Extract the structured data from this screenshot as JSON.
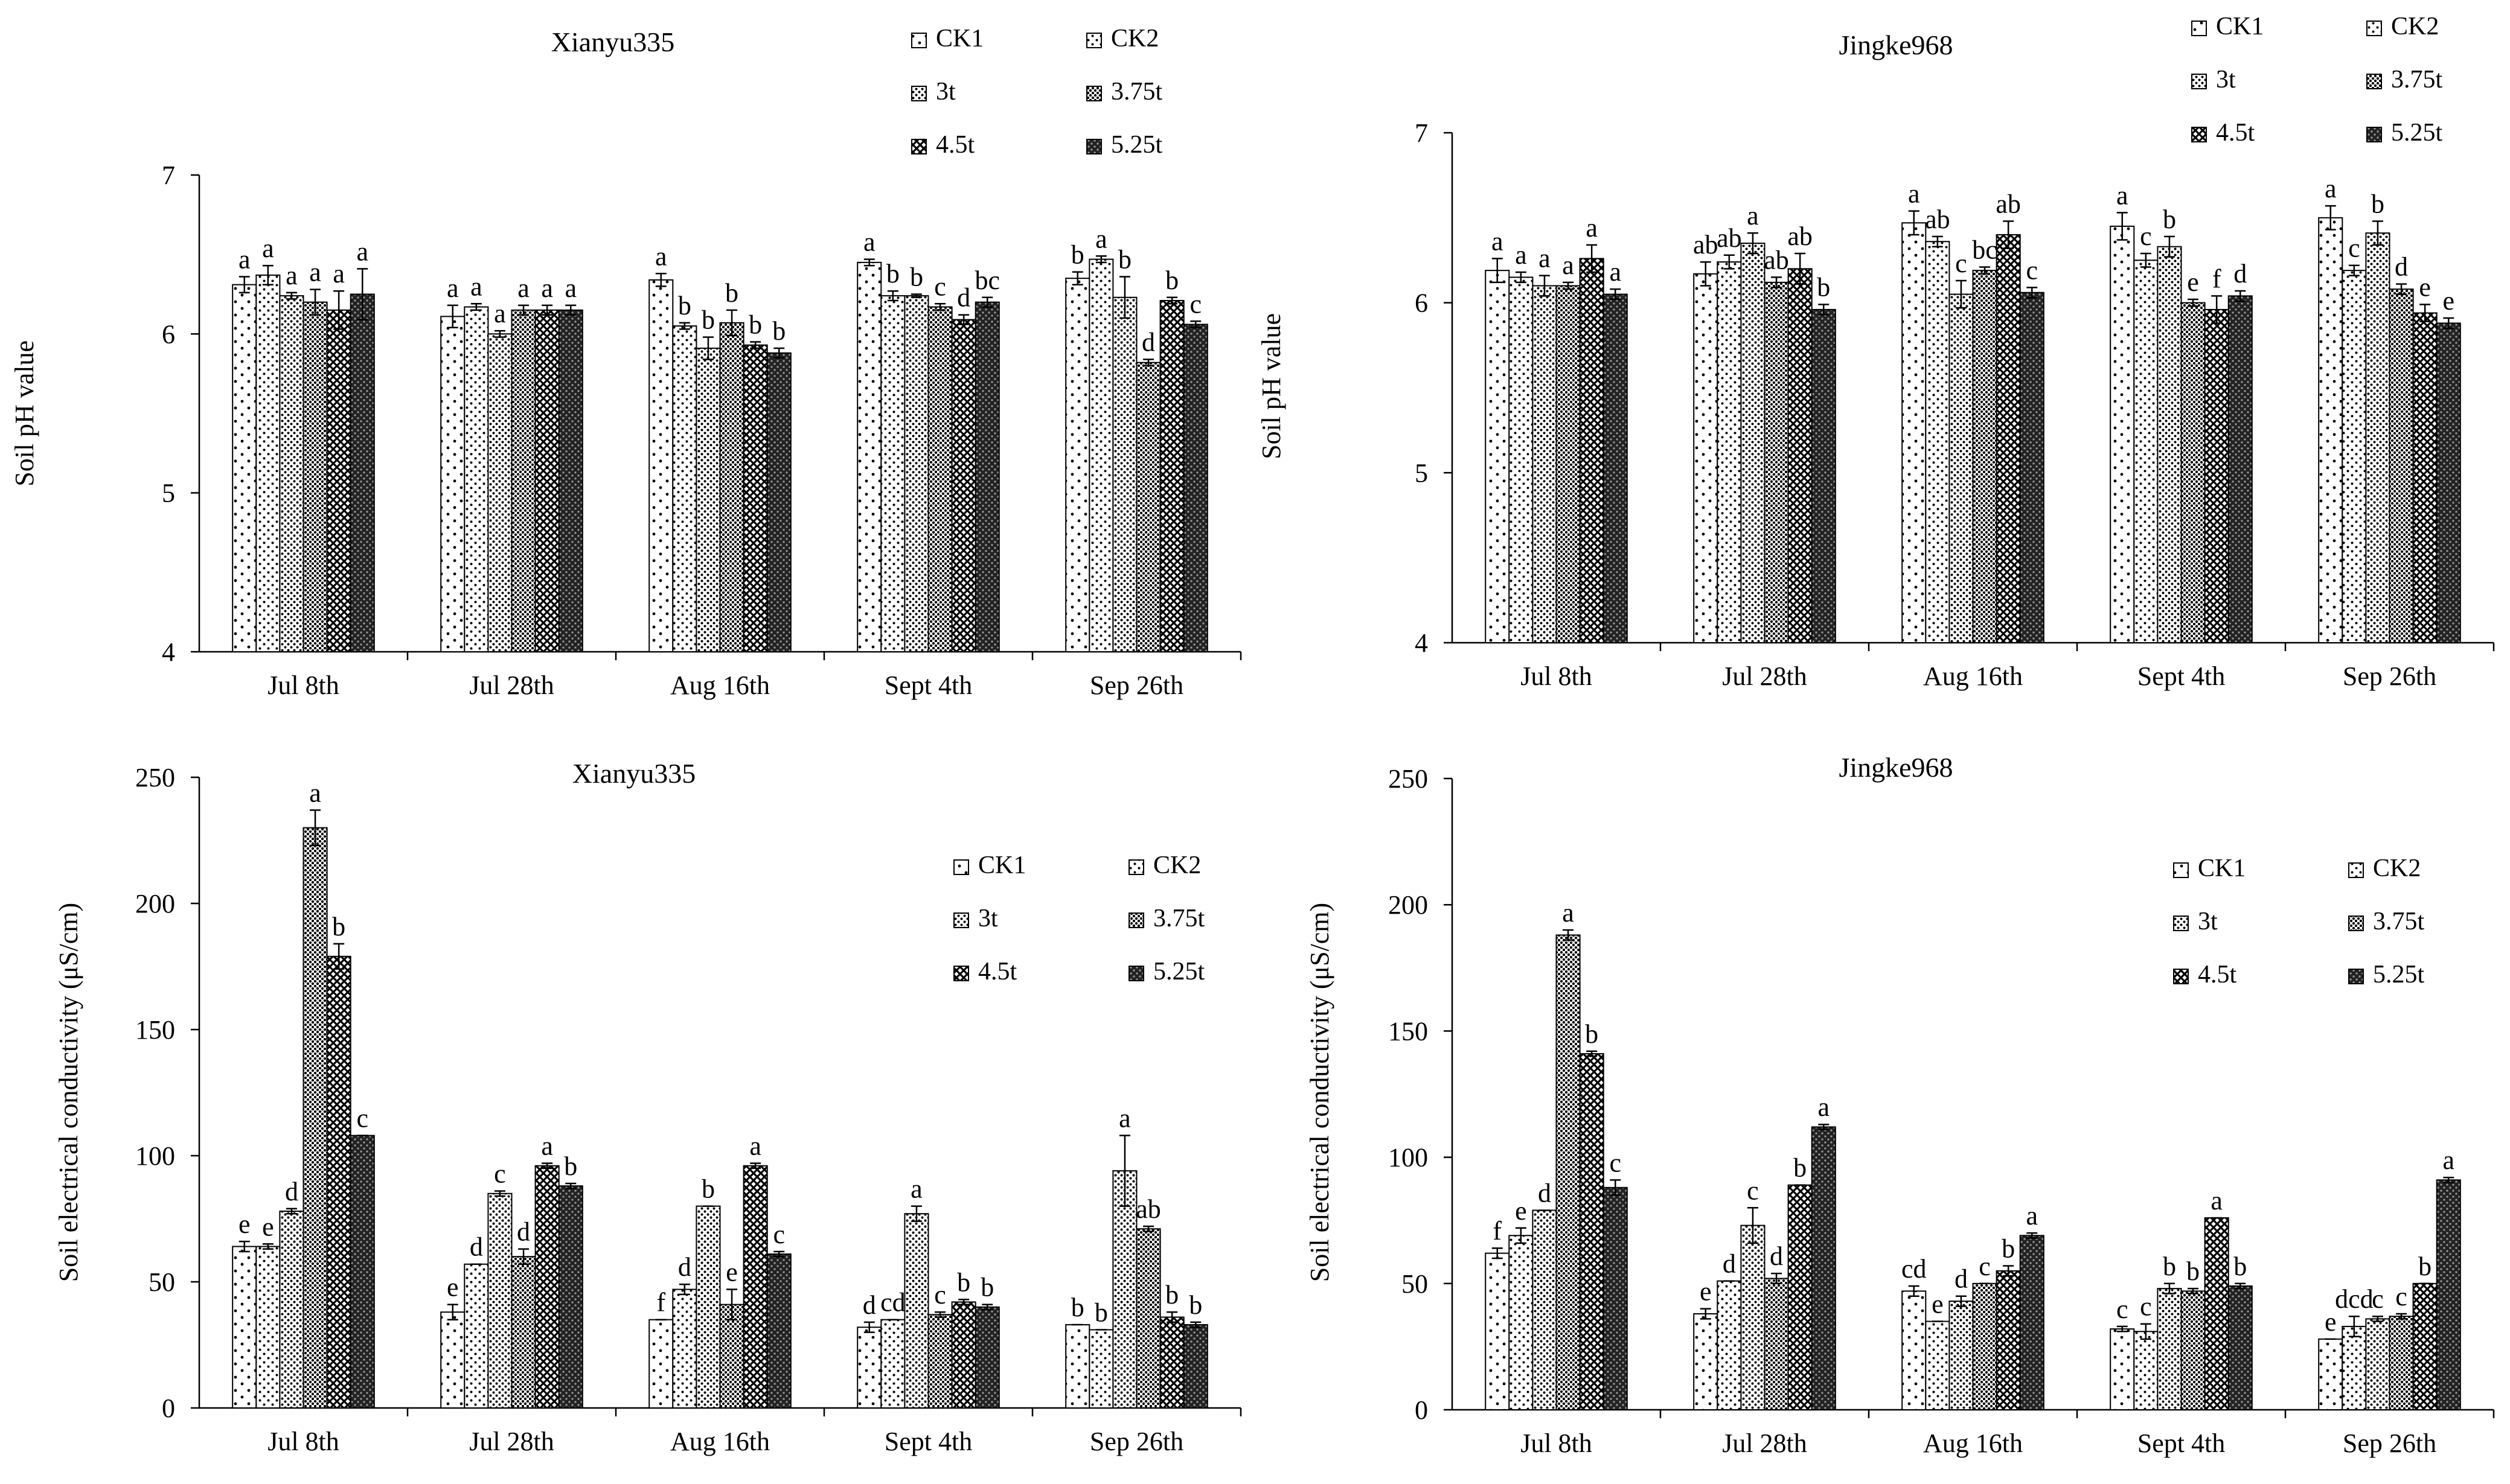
{
  "chart_data": [
    {
      "id": "ph_xianyu",
      "type": "bar",
      "title": "Xianyu335",
      "xlabel": "",
      "ylabel": "Soil pH value",
      "ylim": [
        4,
        7
      ],
      "yticks": [
        4,
        5,
        6,
        7
      ],
      "grid": false,
      "legend_position": "top-right",
      "categories": [
        "Jul 8th",
        "Jul 28th",
        "Aug 16th",
        "Sept 4th",
        "Sep 26th"
      ],
      "series": [
        {
          "name": "CK1",
          "pattern": "dots-sparse",
          "values": [
            6.31,
            6.11,
            6.34,
            6.45,
            6.35
          ],
          "errors": [
            0.05,
            0.07,
            0.04,
            0.02,
            0.04
          ],
          "letters": [
            "a",
            "a",
            "a",
            "a",
            "b"
          ]
        },
        {
          "name": "CK2",
          "pattern": "dots-light",
          "values": [
            6.37,
            6.17,
            6.05,
            6.24,
            6.47
          ],
          "errors": [
            0.06,
            0.02,
            0.02,
            0.03,
            0.02
          ],
          "letters": [
            "a",
            "a",
            "b",
            "b",
            "a"
          ]
        },
        {
          "name": "3t",
          "pattern": "dots-medium",
          "values": [
            6.24,
            6.0,
            5.91,
            6.24,
            6.23
          ],
          "errors": [
            0.02,
            0.02,
            0.07,
            0.01,
            0.13
          ],
          "letters": [
            "a",
            "a",
            "b",
            "b",
            "b"
          ]
        },
        {
          "name": "3.75t",
          "pattern": "dots-dense",
          "values": [
            6.2,
            6.15,
            6.07,
            6.17,
            5.82
          ],
          "errors": [
            0.08,
            0.03,
            0.08,
            0.02,
            0.02
          ],
          "letters": [
            "a",
            "a",
            "b",
            "c",
            "d"
          ]
        },
        {
          "name": "4.5t",
          "pattern": "crosshatch",
          "values": [
            6.15,
            6.15,
            5.93,
            6.09,
            6.21
          ],
          "errors": [
            0.12,
            0.03,
            0.02,
            0.03,
            0.02
          ],
          "letters": [
            "a",
            "a",
            "b",
            "d",
            "b"
          ]
        },
        {
          "name": "5.25t",
          "pattern": "dark-weave",
          "values": [
            6.25,
            6.15,
            5.88,
            6.2,
            6.06
          ],
          "errors": [
            0.16,
            0.03,
            0.03,
            0.03,
            0.02
          ],
          "letters": [
            "a",
            "a",
            "b",
            "bc",
            "c"
          ]
        }
      ]
    },
    {
      "id": "ph_jingke",
      "type": "bar",
      "title": "Jingke968",
      "xlabel": "",
      "ylabel": "Soil pH value",
      "ylim": [
        4,
        7
      ],
      "yticks": [
        4,
        5,
        6,
        7
      ],
      "grid": false,
      "legend_position": "top-right",
      "categories": [
        "Jul 8th",
        "Jul 28th",
        "Aug 16th",
        "Sept 4th",
        "Sep 26th"
      ],
      "series": [
        {
          "name": "CK1",
          "pattern": "dots-sparse",
          "values": [
            6.19,
            6.17,
            6.47,
            6.45,
            6.5
          ],
          "errors": [
            0.07,
            0.07,
            0.07,
            0.08,
            0.07
          ],
          "letters": [
            "a",
            "ab",
            "a",
            "a",
            "a"
          ]
        },
        {
          "name": "CK2",
          "pattern": "dots-light",
          "values": [
            6.15,
            6.24,
            6.36,
            6.25,
            6.19
          ],
          "errors": [
            0.03,
            0.04,
            0.03,
            0.04,
            0.03
          ],
          "letters": [
            "a",
            "ab",
            "ab",
            "c",
            "c"
          ]
        },
        {
          "name": "3t",
          "pattern": "dots-medium",
          "values": [
            6.1,
            6.35,
            6.05,
            6.33,
            6.41
          ],
          "errors": [
            0.06,
            0.06,
            0.08,
            0.06,
            0.07
          ],
          "letters": [
            "a",
            "a",
            "c",
            "b",
            "b"
          ]
        },
        {
          "name": "3.75t",
          "pattern": "dots-dense",
          "values": [
            6.1,
            6.12,
            6.19,
            6.0,
            6.08
          ],
          "errors": [
            0.02,
            0.03,
            0.02,
            0.02,
            0.03
          ],
          "letters": [
            "a",
            "ab",
            "bc",
            "e",
            "d"
          ]
        },
        {
          "name": "4.5t",
          "pattern": "crosshatch",
          "values": [
            6.26,
            6.2,
            6.4,
            5.96,
            5.94
          ],
          "errors": [
            0.08,
            0.09,
            0.08,
            0.08,
            0.05
          ],
          "letters": [
            "a",
            "ab",
            "ab",
            "f",
            "e"
          ]
        },
        {
          "name": "5.25t",
          "pattern": "dark-weave",
          "values": [
            6.05,
            5.96,
            6.06,
            6.04,
            5.88
          ],
          "errors": [
            0.03,
            0.03,
            0.03,
            0.03,
            0.03
          ],
          "letters": [
            "a",
            "b",
            "c",
            "d",
            "e"
          ]
        }
      ]
    },
    {
      "id": "ec_xianyu",
      "type": "bar",
      "title": "Xianyu335",
      "xlabel": "",
      "ylabel": "Soil electrical conductivity (μS/cm)",
      "ylim": [
        0,
        250
      ],
      "yticks": [
        0,
        50,
        100,
        150,
        200,
        250
      ],
      "grid": false,
      "legend_position": "top-right",
      "categories": [
        "Jul 8th",
        "Jul 28th",
        "Aug 16th",
        "Sept 4th",
        "Sep 26th"
      ],
      "series": [
        {
          "name": "CK1",
          "pattern": "dots-sparse",
          "values": [
            64,
            38,
            35,
            32,
            33
          ],
          "errors": [
            2,
            3,
            0,
            2,
            0
          ],
          "letters": [
            "e",
            "e",
            "f",
            "d",
            "b"
          ]
        },
        {
          "name": "CK2",
          "pattern": "dots-light",
          "values": [
            64,
            57,
            47,
            35,
            31
          ],
          "errors": [
            1,
            0,
            2,
            0,
            0
          ],
          "letters": [
            "e",
            "d",
            "d",
            "cd",
            "b"
          ]
        },
        {
          "name": "3t",
          "pattern": "dots-medium",
          "values": [
            78,
            85,
            80,
            77,
            94
          ],
          "errors": [
            1,
            1,
            0,
            3,
            14
          ],
          "letters": [
            "d",
            "c",
            "b",
            "a",
            "a"
          ]
        },
        {
          "name": "3.75t",
          "pattern": "dots-dense",
          "values": [
            230,
            60,
            41,
            37,
            71
          ],
          "errors": [
            7,
            3,
            6,
            1,
            1
          ],
          "letters": [
            "a",
            "d",
            "e",
            "c",
            "ab"
          ]
        },
        {
          "name": "4.5t",
          "pattern": "crosshatch",
          "values": [
            179,
            96,
            96,
            42,
            36
          ],
          "errors": [
            5,
            1,
            1,
            1,
            2
          ],
          "letters": [
            "b",
            "a",
            "a",
            "b",
            "b"
          ]
        },
        {
          "name": "5.25t",
          "pattern": "dark-weave",
          "values": [
            108,
            88,
            61,
            40,
            33
          ],
          "errors": [
            0,
            1,
            1,
            1,
            1
          ],
          "letters": [
            "c",
            "b",
            "c",
            "b",
            "b"
          ]
        }
      ]
    },
    {
      "id": "ec_jingke",
      "type": "bar",
      "title": "Jingke968",
      "xlabel": "",
      "ylabel": "Soil electrical conductivity (μS/cm)",
      "ylim": [
        0,
        250
      ],
      "yticks": [
        0,
        50,
        100,
        150,
        200,
        250
      ],
      "grid": false,
      "legend_position": "top-right",
      "categories": [
        "Jul 8th",
        "Jul 28th",
        "Aug 16th",
        "Sept 4th",
        "Sep 26th"
      ],
      "series": [
        {
          "name": "CK1",
          "pattern": "dots-sparse",
          "values": [
            62,
            38,
            47,
            32,
            28
          ],
          "errors": [
            2,
            2,
            2,
            1,
            0
          ],
          "letters": [
            "f",
            "e",
            "cd",
            "c",
            "e"
          ]
        },
        {
          "name": "CK2",
          "pattern": "dots-light",
          "values": [
            69,
            51,
            35,
            31,
            33
          ],
          "errors": [
            3,
            0,
            0,
            3,
            4
          ],
          "letters": [
            "e",
            "d",
            "e",
            "c",
            "dcd"
          ]
        },
        {
          "name": "3t",
          "pattern": "dots-medium",
          "values": [
            79,
            73,
            43,
            48,
            36
          ],
          "errors": [
            0,
            7,
            2,
            2,
            1
          ],
          "letters": [
            "d",
            "c",
            "d",
            "b",
            "c"
          ]
        },
        {
          "name": "3.75t",
          "pattern": "dots-dense",
          "values": [
            188,
            52,
            50,
            47,
            37
          ],
          "errors": [
            2,
            2,
            0,
            1,
            1
          ],
          "letters": [
            "a",
            "d",
            "c",
            "b",
            "c"
          ]
        },
        {
          "name": "4.5t",
          "pattern": "crosshatch",
          "values": [
            141,
            89,
            55,
            76,
            50
          ],
          "errors": [
            1,
            0,
            2,
            0,
            0
          ],
          "letters": [
            "b",
            "b",
            "b",
            "a",
            "b"
          ]
        },
        {
          "name": "5.25t",
          "pattern": "dark-weave",
          "values": [
            88,
            112,
            69,
            49,
            91
          ],
          "errors": [
            3,
            1,
            1,
            1,
            1
          ],
          "letters": [
            "c",
            "a",
            "a",
            "b",
            "a"
          ]
        }
      ]
    }
  ]
}
